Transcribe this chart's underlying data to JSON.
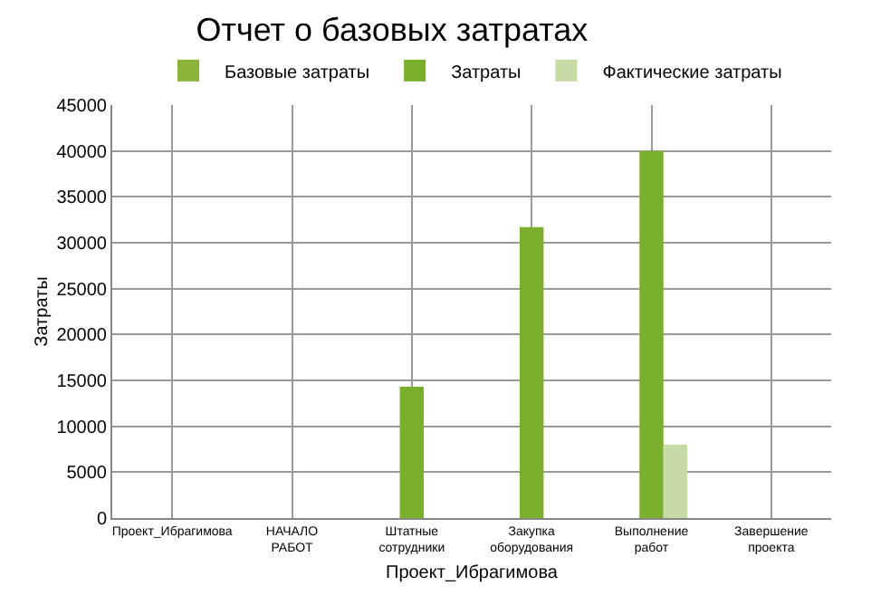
{
  "chart_data": {
    "type": "bar",
    "title": "Отчет о базовых затратах",
    "xlabel": "Проект_Ибрагимова",
    "ylabel": "Затраты",
    "categories": [
      "Проект_Ибрагимова",
      "НАЧАЛО РАБОТ",
      "Штатные сотрудники",
      "Закупка оборудования",
      "Выполнение работ",
      "Завершение проекта"
    ],
    "series": [
      {
        "name": "Базовые затраты",
        "color": "#8db43a",
        "values": [
          null,
          null,
          null,
          null,
          null,
          null
        ]
      },
      {
        "name": "Затраты",
        "color": "#7aaf2c",
        "values": [
          null,
          null,
          14300,
          31700,
          40000,
          null
        ]
      },
      {
        "name": "Фактические затраты",
        "color": "#c6dba6",
        "values": [
          null,
          null,
          null,
          null,
          8000,
          null
        ]
      }
    ],
    "ylim": [
      0,
      45000
    ],
    "yticks": [
      0,
      5000,
      10000,
      15000,
      20000,
      25000,
      30000,
      35000,
      40000,
      45000
    ],
    "grid": true,
    "legend": "top"
  }
}
